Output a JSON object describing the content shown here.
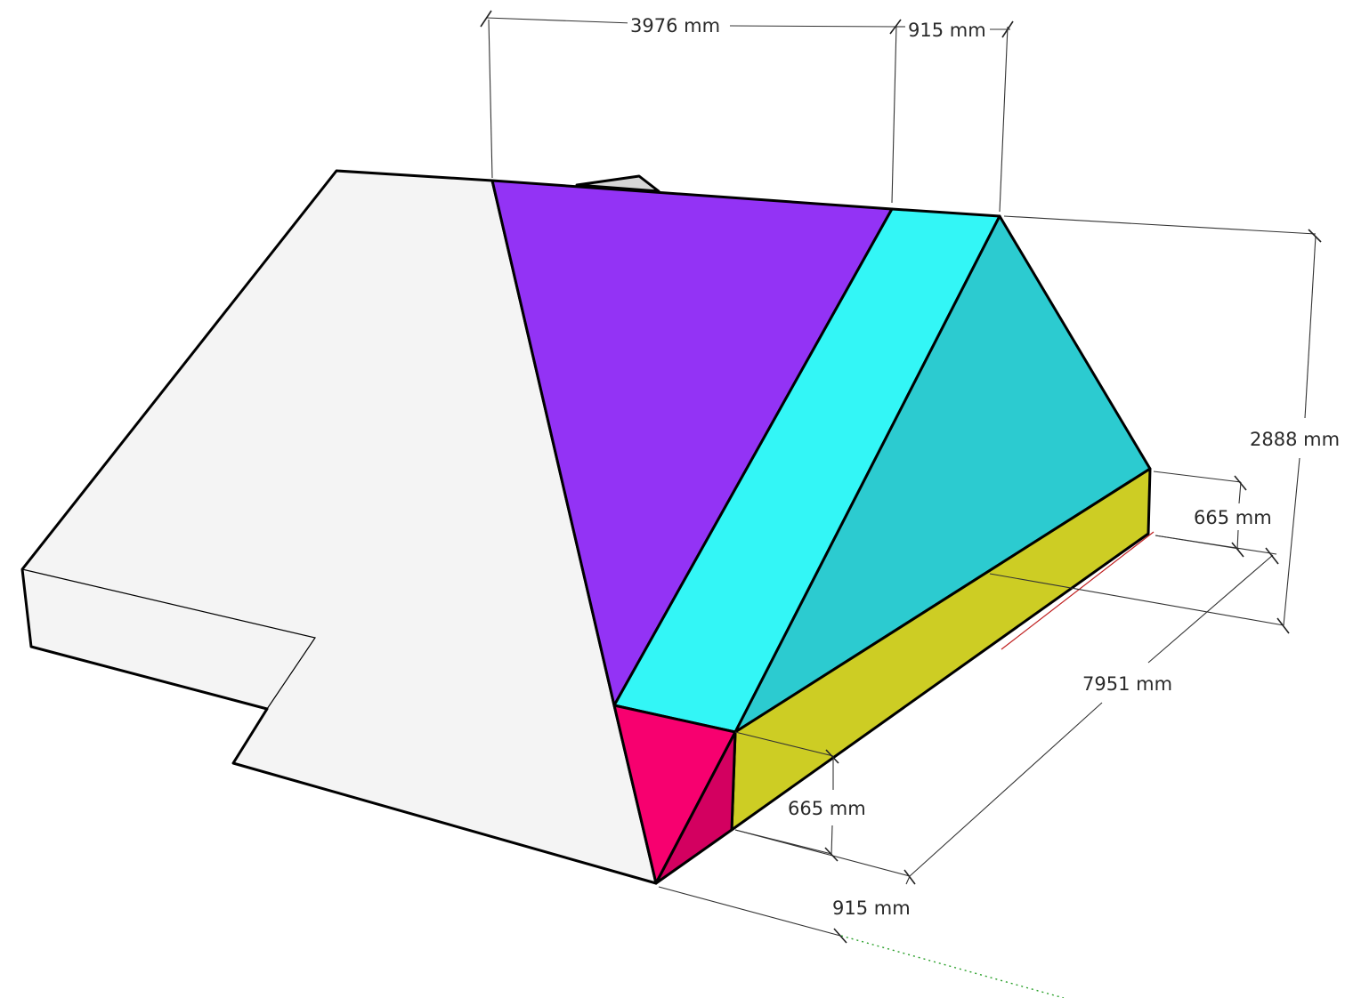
{
  "dimensions": {
    "top_width": "3976 mm",
    "top_overhang": "915 mm",
    "height": "2888 mm",
    "right_wall_height": "665 mm",
    "length": "7951 mm",
    "front_wall_height": "665 mm",
    "front_overhang": "915 mm"
  },
  "colors": {
    "white_roof": "#f4f4f4",
    "purple_face": "#9333f5",
    "cyan_strip": "#33f6f6",
    "teal_face": "#2ccbd0",
    "yellow_wall": "#cdcd24",
    "magenta_front": "#f7006f",
    "magenta_side": "#d30060",
    "grey_peak": "#d6d6d6"
  }
}
